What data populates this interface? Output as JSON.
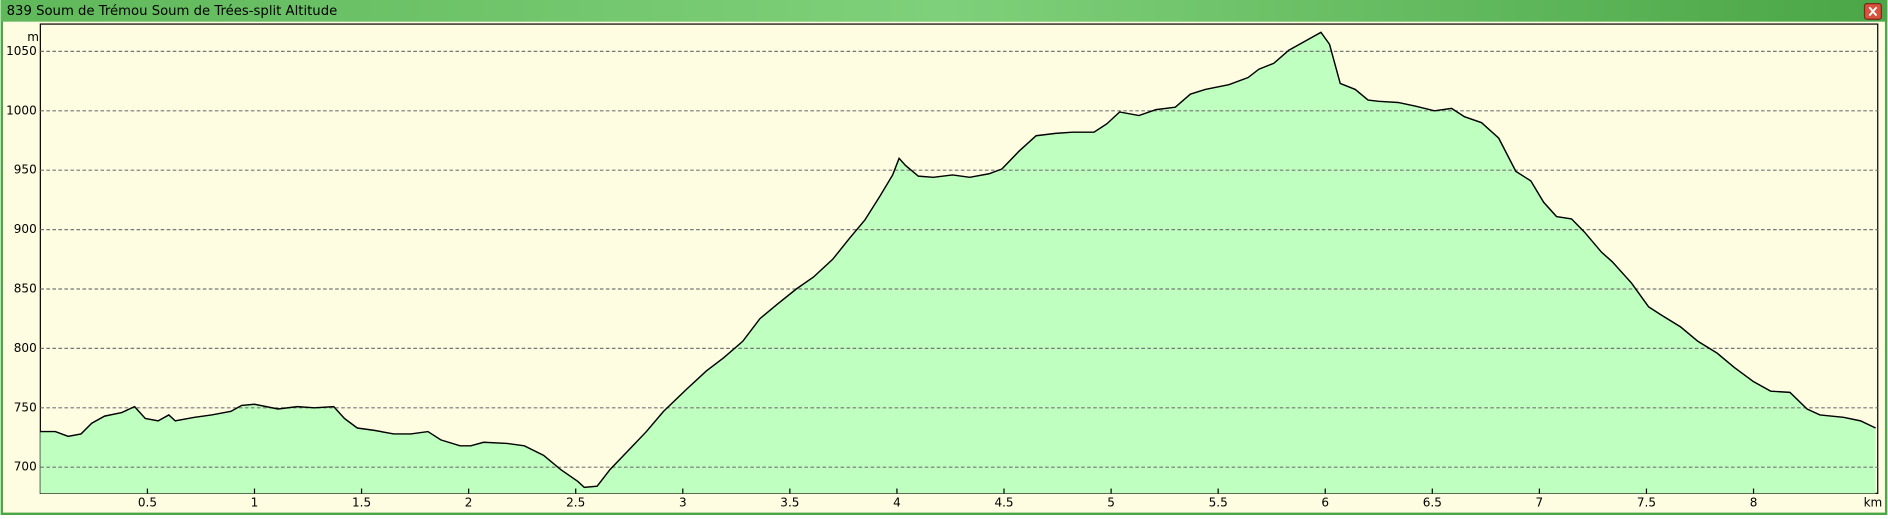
{
  "chart_data": {
    "type": "area",
    "title": "839 Soum de Trémou Soum de Trées-split Altitude",
    "x_unit": "km",
    "y_unit": "m",
    "x": [
      0,
      0.07,
      0.13,
      0.19,
      0.24,
      0.3,
      0.38,
      0.44,
      0.49,
      0.55,
      0.6,
      0.63,
      0.72,
      0.8,
      0.89,
      0.94,
      1.0,
      1.11,
      1.2,
      1.28,
      1.37,
      1.42,
      1.48,
      1.56,
      1.65,
      1.73,
      1.81,
      1.87,
      1.96,
      2.01,
      2.07,
      2.18,
      2.26,
      2.35,
      2.43,
      2.51,
      2.54,
      2.6,
      2.66,
      2.74,
      2.83,
      2.91,
      3.02,
      3.11,
      3.19,
      3.28,
      3.36,
      3.44,
      3.53,
      3.61,
      3.7,
      3.78,
      3.85,
      3.92,
      3.98,
      4.01,
      4.04,
      4.1,
      4.17,
      4.26,
      4.34,
      4.43,
      4.49,
      4.57,
      4.65,
      4.74,
      4.82,
      4.92,
      4.98,
      5.04,
      5.13,
      5.21,
      5.3,
      5.37,
      5.44,
      5.55,
      5.64,
      5.69,
      5.76,
      5.83,
      5.92,
      5.98,
      6.02,
      6.07,
      6.14,
      6.2,
      6.25,
      6.34,
      6.42,
      6.51,
      6.59,
      6.65,
      6.73,
      6.81,
      6.89,
      6.96,
      7.02,
      7.08,
      7.15,
      7.21,
      7.29,
      7.34,
      7.43,
      7.51,
      7.57,
      7.66,
      7.74,
      7.83,
      7.91,
      8.0,
      8.08,
      8.17,
      8.25,
      8.31,
      8.42,
      8.5,
      8.57
    ],
    "values": [
      730,
      730,
      726,
      728,
      737,
      743,
      746,
      751,
      741,
      739,
      744,
      739,
      742,
      744,
      747,
      752,
      753,
      749,
      751,
      750,
      751,
      741,
      733,
      731,
      728,
      728,
      730,
      723,
      718,
      718,
      721,
      720,
      718,
      710,
      698,
      688,
      683,
      684,
      698,
      713,
      730,
      747,
      766,
      781,
      792,
      806,
      825,
      837,
      850,
      860,
      875,
      893,
      908,
      928,
      946,
      960,
      954,
      945,
      944,
      946,
      944,
      947,
      951,
      966,
      979,
      981,
      982,
      982,
      989,
      999,
      996,
      1001,
      1003,
      1014,
      1018,
      1022,
      1028,
      1035,
      1040,
      1051,
      1060,
      1066,
      1056,
      1023,
      1018,
      1009,
      1008,
      1007,
      1004,
      1000,
      1002,
      995,
      990,
      977,
      949,
      941,
      923,
      911,
      909,
      898,
      881,
      873,
      855,
      835,
      828,
      818,
      806,
      796,
      784,
      772,
      764,
      763,
      749,
      744,
      742,
      739,
      733
    ],
    "color": "#bfffbf",
    "line_color": "#000000",
    "xlim": [
      0,
      8.58
    ],
    "ylim": [
      678,
      1073
    ],
    "xticks": [
      0.5,
      1,
      1.5,
      2,
      2.5,
      3,
      3.5,
      4,
      4.5,
      5,
      5.5,
      6,
      6.5,
      7,
      7.5,
      8
    ],
    "yticks": [
      700,
      750,
      800,
      850,
      900,
      950,
      1000,
      1050
    ],
    "grid": true
  }
}
